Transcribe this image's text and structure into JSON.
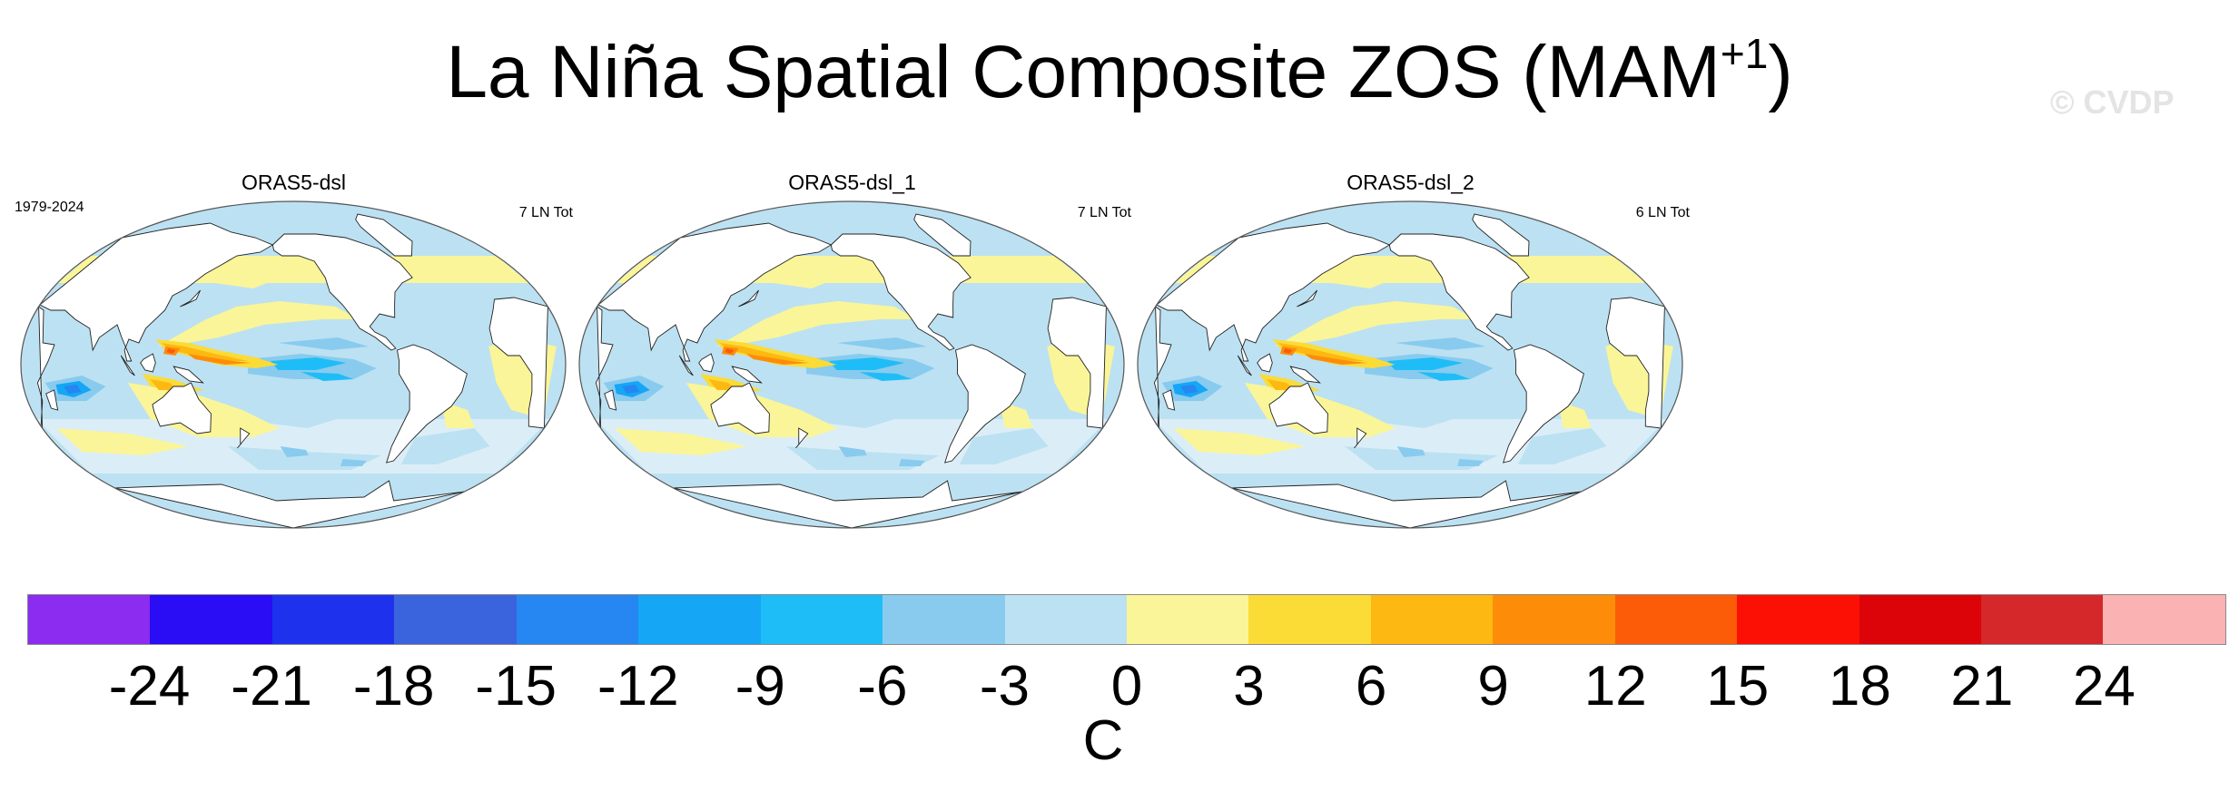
{
  "title": {
    "main": "La Niña Spatial Composite ZOS (MAM",
    "superscript": "+1",
    "close": ")"
  },
  "watermark": "© CVDP",
  "panels": [
    {
      "title": "ORAS5-dsl",
      "period": "1979-2024",
      "count": "7 LN Tot"
    },
    {
      "title": "ORAS5-dsl_1",
      "period": "",
      "count": "7 LN Tot"
    },
    {
      "title": "ORAS5-dsl_2",
      "period": "",
      "count": "6 LN Tot"
    }
  ],
  "colorbar": {
    "ticks": [
      "-24",
      "-21",
      "-18",
      "-15",
      "-12",
      "-9",
      "-6",
      "-3",
      "0",
      "3",
      "6",
      "9",
      "12",
      "15",
      "18",
      "21",
      "24"
    ],
    "colors": [
      "#8b2cf0",
      "#2a0cf5",
      "#1e32ee",
      "#3a64de",
      "#2686f2",
      "#15a6f5",
      "#1fbdf7",
      "#88cbee",
      "#bce1f2",
      "#faf598",
      "#fbdb35",
      "#fdb811",
      "#fd8d09",
      "#fc5b08",
      "#fc1006",
      "#dc0408",
      "#d5282a",
      "#fbb2b2"
    ],
    "units": "C"
  }
}
